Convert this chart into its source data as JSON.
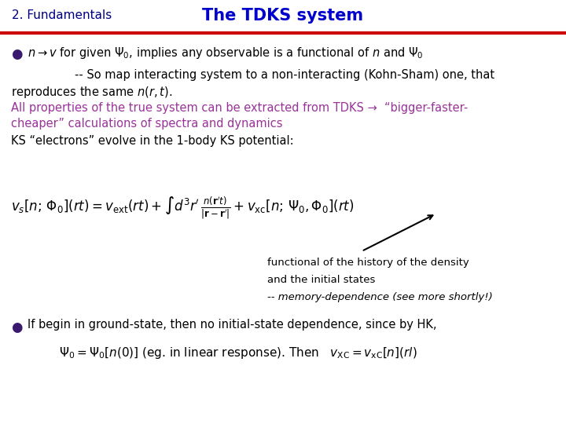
{
  "bg_color": "#ffffff",
  "header_left": "2. Fundamentals",
  "header_center": "The TDKS system",
  "header_left_color": "#000080",
  "header_center_color": "#0000cc",
  "line_color": "#cc0000",
  "bullet_color": "#3a1a6e",
  "purple_text_color": "#993399",
  "black_text_color": "#000000",
  "annot1": "functional of the history of the density",
  "annot2": "and the initial states",
  "annot3": "-- memory-dependence (see more shortly!)"
}
